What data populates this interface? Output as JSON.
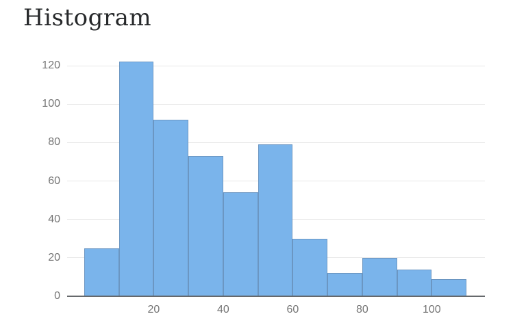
{
  "header": {
    "title": "Histogram"
  },
  "chart_data": {
    "type": "bar",
    "variant": "histogram",
    "title": "Histogram",
    "xlabel": "",
    "ylabel": "",
    "bin_width": 10,
    "bin_edges": [
      0,
      10,
      20,
      30,
      40,
      50,
      60,
      70,
      80,
      90,
      100,
      110
    ],
    "counts": [
      25,
      122,
      92,
      73,
      54,
      79,
      30,
      12,
      20,
      14,
      9
    ],
    "x_ticks": [
      20,
      40,
      60,
      80,
      100
    ],
    "y_ticks": [
      0,
      20,
      40,
      60,
      80,
      100,
      120
    ],
    "xlim": [
      -4.9,
      115.3
    ],
    "ylim": [
      0,
      120
    ],
    "grid": true,
    "legend": false,
    "colors": {
      "bar_fill": "#7ab4eb",
      "bar_border": "#6b96c2",
      "gridline": "#e7e7e7",
      "axis_line": "#66696c",
      "tick_label": "#757575",
      "title": "#26282a",
      "background": "#ffffff"
    }
  }
}
